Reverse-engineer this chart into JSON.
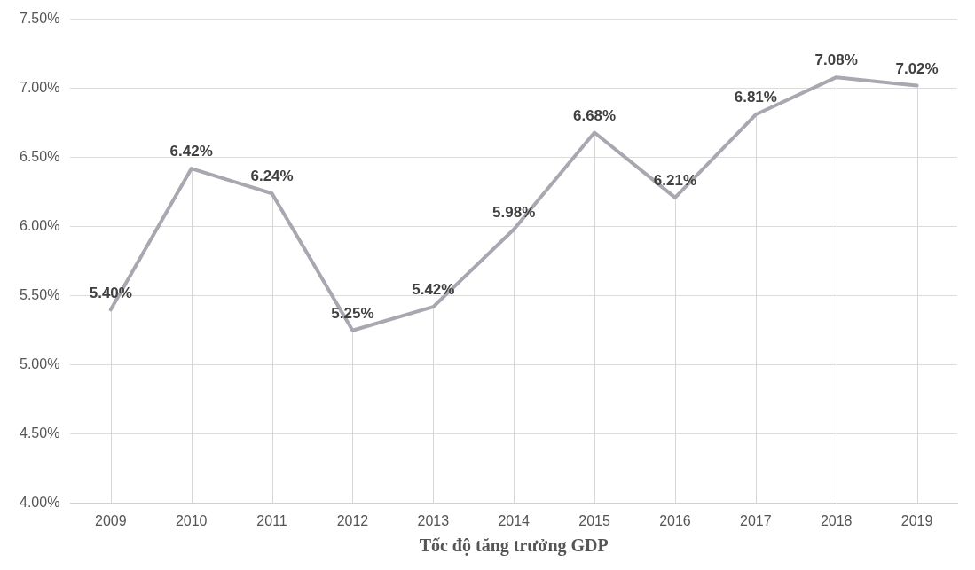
{
  "chart_data": {
    "type": "line",
    "xlabel": "Tốc độ tăng trưởng GDP",
    "categories": [
      "2009",
      "2010",
      "2011",
      "2012",
      "2013",
      "2014",
      "2015",
      "2016",
      "2017",
      "2018",
      "2019"
    ],
    "series": [
      {
        "color": "#a8a8b0",
        "values": [
          5.4,
          6.42,
          6.24,
          5.25,
          5.42,
          5.98,
          6.68,
          6.21,
          6.81,
          7.08,
          7.02
        ],
        "value_labels": [
          "5.40%",
          "6.42%",
          "6.24%",
          "5.25%",
          "5.42%",
          "5.98%",
          "6.68%",
          "6.21%",
          "6.81%",
          "7.08%",
          "7.02%"
        ]
      }
    ],
    "ylim": [
      4,
      7.5
    ],
    "yticks": [
      {
        "value": 4,
        "label": "4.00%"
      },
      {
        "value": 4.5,
        "label": "4.50%"
      },
      {
        "value": 5,
        "label": "5.00%"
      },
      {
        "value": 5.5,
        "label": "5.50%"
      },
      {
        "value": 6,
        "label": "6.00%"
      },
      {
        "value": 6.5,
        "label": "6.50%"
      },
      {
        "value": 7,
        "label": "7.00%"
      },
      {
        "value": 7.5,
        "label": "7.50%"
      }
    ],
    "grid": true,
    "legend": false,
    "marker": "none",
    "line_style": "solid"
  }
}
